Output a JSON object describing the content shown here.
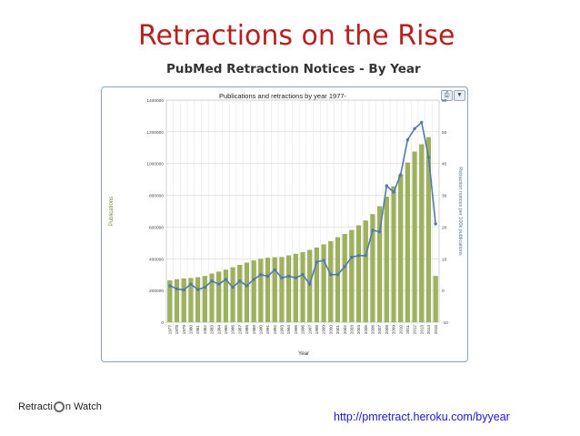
{
  "slide": {
    "title": "Retractions on the Rise",
    "subtitle": "PubMed Retraction Notices - By Year",
    "url": "http://pmretract.heroku.com/byyear",
    "logo_left": "Retracti",
    "logo_right": "n Watch"
  },
  "toolbar": {
    "print_icon": "printer-icon",
    "export_icon": "download-icon"
  },
  "chart_data": {
    "type": "bar+line",
    "title": "Publications and retractions by year 1977-",
    "xlabel": "Year",
    "ylabel_left": "Publications",
    "ylabel_right": "Retraction notices per 100k publications",
    "categories": [
      "1977",
      "1978",
      "1979",
      "1980",
      "1981",
      "1982",
      "1983",
      "1984",
      "1985",
      "1986",
      "1987",
      "1988",
      "1989",
      "1990",
      "1991",
      "1992",
      "1993",
      "1994",
      "1995",
      "1996",
      "1997",
      "1998",
      "1999",
      "2000",
      "2001",
      "2002",
      "2003",
      "2004",
      "2005",
      "2006",
      "2007",
      "2008",
      "2009",
      "2010",
      "2011",
      "2012",
      "2013",
      "2014",
      "2015"
    ],
    "ylim_left": [
      0,
      1400000
    ],
    "yticks_left": [
      0,
      200000,
      400000,
      600000,
      800000,
      1000000,
      1200000,
      1400000
    ],
    "ylim_right": [
      -10,
      60
    ],
    "yticks_right": [
      -10,
      0,
      10,
      20,
      30,
      40,
      50,
      60
    ],
    "grid": true,
    "series": [
      {
        "type": "bar",
        "axis": "left",
        "color": "#9db25a",
        "values": [
          262000,
          270000,
          275000,
          278000,
          282000,
          290000,
          305000,
          318000,
          330000,
          345000,
          360000,
          375000,
          388000,
          398000,
          405000,
          408000,
          410000,
          420000,
          430000,
          440000,
          455000,
          470000,
          490000,
          510000,
          535000,
          555000,
          580000,
          610000,
          640000,
          680000,
          730000,
          790000,
          855000,
          930000,
          1005000,
          1075000,
          1120000,
          1165000,
          290000
        ]
      },
      {
        "type": "line",
        "axis": "right",
        "color": "#5279ad",
        "values": [
          1.5,
          0.5,
          0.2,
          2.0,
          0.3,
          1.0,
          3.0,
          2.0,
          3.5,
          1.0,
          3.0,
          1.5,
          3.5,
          5.0,
          4.5,
          6.5,
          4.0,
          4.5,
          4.0,
          5.0,
          2.0,
          9.0,
          9.5,
          5.0,
          5.0,
          7.5,
          10.5,
          11.0,
          11.0,
          19.0,
          18.5,
          33.0,
          31.0,
          36.5,
          47.5,
          51.0,
          53.0,
          42.0,
          21.0
        ]
      }
    ]
  }
}
